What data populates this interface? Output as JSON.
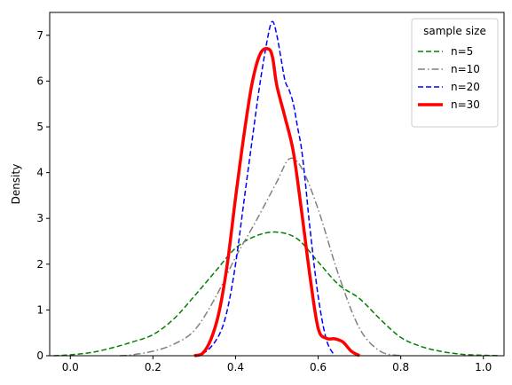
{
  "chart_data": {
    "type": "line",
    "title": "",
    "xlabel": "",
    "ylabel": "Density",
    "xlim": [
      -0.05,
      1.05
    ],
    "ylim": [
      0,
      7.5
    ],
    "xticks": [
      0.0,
      0.2,
      0.4,
      0.6,
      0.8,
      1.0
    ],
    "xtick_labels": [
      "0.0",
      "0.2",
      "0.4",
      "0.6",
      "0.8",
      "1.0"
    ],
    "yticks": [
      0,
      1,
      2,
      3,
      4,
      5,
      6,
      7
    ],
    "ytick_labels": [
      "0",
      "1",
      "2",
      "3",
      "4",
      "5",
      "6",
      "7"
    ],
    "grid": false,
    "legend": {
      "title": "sample size",
      "placement": "top-right",
      "entries": [
        "n=5",
        "n=10",
        "n=20",
        "n=30"
      ]
    },
    "series": [
      {
        "name": "n=5",
        "color": "#008000",
        "style": "dashed",
        "width": 1.5,
        "x": [
          -0.04,
          0.0,
          0.05,
          0.1,
          0.15,
          0.2,
          0.25,
          0.3,
          0.35,
          0.4,
          0.45,
          0.5,
          0.55,
          0.6,
          0.65,
          0.7,
          0.75,
          0.8,
          0.85,
          0.9,
          0.95,
          1.0,
          1.04
        ],
        "y": [
          0.0,
          0.02,
          0.07,
          0.17,
          0.3,
          0.46,
          0.8,
          1.3,
          1.83,
          2.35,
          2.62,
          2.7,
          2.55,
          2.05,
          1.55,
          1.25,
          0.8,
          0.4,
          0.2,
          0.09,
          0.03,
          0.01,
          0.0
        ]
      },
      {
        "name": "n=10",
        "color": "#808080",
        "style": "dashdot",
        "width": 1.5,
        "x": [
          0.12,
          0.15,
          0.2,
          0.25,
          0.3,
          0.35,
          0.4,
          0.45,
          0.5,
          0.53,
          0.56,
          0.6,
          0.65,
          0.7,
          0.75,
          0.8
        ],
        "y": [
          0.0,
          0.02,
          0.1,
          0.25,
          0.55,
          1.25,
          2.15,
          2.95,
          3.8,
          4.3,
          4.1,
          3.2,
          1.75,
          0.6,
          0.1,
          0.0
        ]
      },
      {
        "name": "n=20",
        "color": "#0000ff",
        "style": "dashed",
        "width": 1.5,
        "x": [
          0.3,
          0.33,
          0.36,
          0.38,
          0.4,
          0.42,
          0.44,
          0.46,
          0.48,
          0.49,
          0.5,
          0.51,
          0.52,
          0.53,
          0.54,
          0.55,
          0.56,
          0.57,
          0.58,
          0.6,
          0.62,
          0.64
        ],
        "y": [
          0.0,
          0.1,
          0.45,
          1.0,
          2.0,
          3.35,
          4.7,
          6.0,
          7.05,
          7.3,
          7.0,
          6.5,
          6.0,
          5.8,
          5.5,
          5.0,
          4.5,
          3.7,
          2.8,
          1.3,
          0.35,
          0.0
        ]
      },
      {
        "name": "n=30",
        "color": "#ff0000",
        "style": "solid",
        "width": 3.5,
        "x": [
          0.3,
          0.32,
          0.34,
          0.36,
          0.38,
          0.4,
          0.42,
          0.44,
          0.46,
          0.48,
          0.49,
          0.5,
          0.52,
          0.54,
          0.56,
          0.58,
          0.6,
          0.62,
          0.64,
          0.66,
          0.68,
          0.7
        ],
        "y": [
          0.0,
          0.05,
          0.35,
          0.95,
          2.0,
          3.45,
          4.8,
          5.95,
          6.6,
          6.7,
          6.5,
          5.9,
          5.2,
          4.45,
          3.15,
          1.75,
          0.6,
          0.38,
          0.37,
          0.3,
          0.1,
          0.0
        ]
      }
    ]
  }
}
